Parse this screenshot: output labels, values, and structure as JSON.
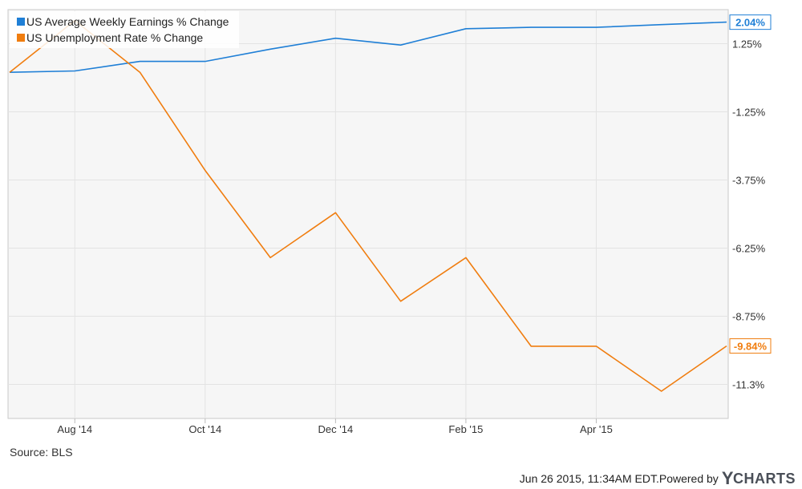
{
  "chart_data": {
    "type": "line",
    "x": [
      "Jul '14",
      "Aug '14",
      "Sep '14",
      "Oct '14",
      "Nov '14",
      "Dec '14",
      "Jan '15",
      "Feb '15",
      "Mar '15",
      "Apr '15",
      "May '15",
      "Jun '15"
    ],
    "x_ticks": [
      "Aug '14",
      "Oct '14",
      "Dec '14",
      "Feb '15",
      "Apr '15"
    ],
    "y_ticks": [
      "1.25%",
      "-1.25%",
      "-3.75%",
      "-6.25%",
      "-8.75%",
      "-11.3%"
    ],
    "y_tick_values": [
      1.25,
      -1.25,
      -3.75,
      -6.25,
      -8.75,
      -11.25
    ],
    "ylim": [
      -12.5,
      2.5
    ],
    "grid": true,
    "legend_position": "top-left",
    "series": [
      {
        "name": "US Average Weekly Earnings % Change",
        "color": "#1f7fd6",
        "values": [
          0.2,
          0.25,
          0.6,
          0.6,
          1.05,
          1.45,
          1.2,
          1.8,
          1.85,
          1.85,
          1.95,
          2.04
        ],
        "end_label": "2.04%"
      },
      {
        "name": "US Unemployment Rate % Change",
        "color": "#f07d0f",
        "values": [
          0.2,
          2.1,
          0.2,
          -3.4,
          -6.6,
          -4.95,
          -8.2,
          -6.6,
          -9.85,
          -9.85,
          -11.5,
          -9.84
        ],
        "end_label": "-9.84%"
      }
    ]
  },
  "source": "Source: BLS",
  "footer": {
    "timestamp": "Jun 26 2015, 11:34AM EDT.",
    "powered_by": "Powered by",
    "brand_initial": "Y",
    "brand_rest": "CHARTS"
  }
}
